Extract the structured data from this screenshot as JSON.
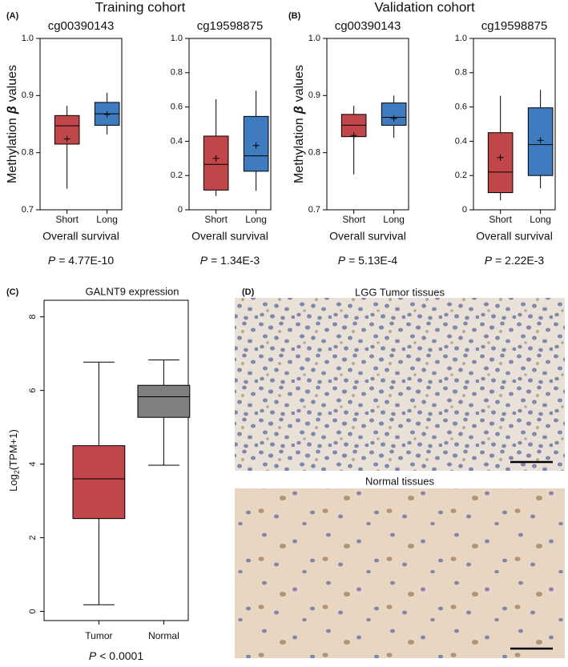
{
  "chart_data": [
    {
      "type": "box",
      "panel": "(A)",
      "group_title": "Training cohort",
      "title": "cg00390143",
      "ylabel": [
        "Methylation",
        "β",
        "values"
      ],
      "xlabel": "Overall survival",
      "p_label": "P",
      "p_value": "= 4.77E-10",
      "categories": [
        "Short",
        "Long"
      ],
      "colors": [
        "#c0464a",
        "#3f7cbf"
      ],
      "min": [
        0.737,
        0.832
      ],
      "q1": [
        0.815,
        0.848
      ],
      "median": [
        0.847,
        0.868
      ],
      "q3": [
        0.865,
        0.888
      ],
      "max": [
        0.882,
        0.905
      ],
      "mean": [
        0.824,
        0.867
      ],
      "ylim": [
        0.7,
        1
      ],
      "yticks": [
        0.7,
        0.8,
        0.9,
        {
          "value": 1,
          "label": "1.0"
        }
      ]
    },
    {
      "type": "box",
      "title": "cg19598875",
      "xlabel": "Overall survival",
      "p_label": "P",
      "p_value": "= 1.34E-3",
      "categories": [
        "Short",
        "Long"
      ],
      "colors": [
        "#c0464a",
        "#3f7cbf"
      ],
      "min": [
        0.08,
        0.11
      ],
      "q1": [
        0.115,
        0.225
      ],
      "median": [
        0.265,
        0.315
      ],
      "q3": [
        0.43,
        0.545
      ],
      "max": [
        0.645,
        0.695
      ],
      "mean": [
        0.3,
        0.375
      ],
      "ylim": [
        0,
        1
      ],
      "yticks": [
        0,
        0.2,
        0.4,
        0.6,
        0.8,
        {
          "value": 1,
          "label": "1.0"
        }
      ]
    },
    {
      "type": "box",
      "panel": "(B)",
      "group_title": "Validation cohort",
      "title": "cg00390143",
      "ylabel": [
        "Methylation",
        "β",
        "values"
      ],
      "xlabel": "Overall survival",
      "p_label": "P",
      "p_value": "= 5.13E-4",
      "categories": [
        "Short",
        "Long"
      ],
      "colors": [
        "#c0464a",
        "#3f7cbf"
      ],
      "min": [
        0.762,
        0.826
      ],
      "q1": [
        0.828,
        0.848
      ],
      "median": [
        0.848,
        0.862
      ],
      "q3": [
        0.867,
        0.887
      ],
      "max": [
        0.882,
        0.9
      ],
      "mean": [
        0.83,
        0.86
      ],
      "ylim": [
        0.7,
        1
      ],
      "yticks": [
        0.7,
        0.8,
        0.9,
        {
          "value": 1,
          "label": "1.0"
        }
      ]
    },
    {
      "type": "box",
      "title": "cg19598875",
      "xlabel": "Overall survival",
      "p_label": "P",
      "p_value": "= 2.22E-3",
      "categories": [
        "Short",
        "Long"
      ],
      "colors": [
        "#c0464a",
        "#3f7cbf"
      ],
      "min": [
        0.055,
        0.125
      ],
      "q1": [
        0.1,
        0.2
      ],
      "median": [
        0.22,
        0.38
      ],
      "q3": [
        0.45,
        0.595
      ],
      "max": [
        0.665,
        0.7
      ],
      "mean": [
        0.305,
        0.405
      ],
      "ylim": [
        0,
        1
      ],
      "yticks": [
        0,
        0.2,
        0.4,
        0.6,
        0.8,
        {
          "value": 1,
          "label": "1.0"
        }
      ]
    },
    {
      "type": "box",
      "panel": "(C)",
      "title": "GALNT9 expression",
      "ylabel": [
        "Log",
        "2",
        "(TPM+1)"
      ],
      "p_label": "P",
      "p_value": "< 0.0001",
      "categories": [
        "Tumor",
        "Normal"
      ],
      "colors": [
        "#c0464a",
        "#7f7f7f"
      ],
      "min": [
        0.18,
        3.97
      ],
      "q1": [
        2.52,
        5.27
      ],
      "median": [
        3.6,
        5.83
      ],
      "q3": [
        4.5,
        6.14
      ],
      "max": [
        6.77,
        6.83
      ],
      "ylim": [
        -0.25,
        8.45
      ],
      "yticks": [
        0,
        2,
        4,
        6,
        8
      ]
    }
  ],
  "images": {
    "panel": "(D)",
    "tumor_title": "LGG Tumor  tissues",
    "normal_title": "Normal tissues"
  }
}
